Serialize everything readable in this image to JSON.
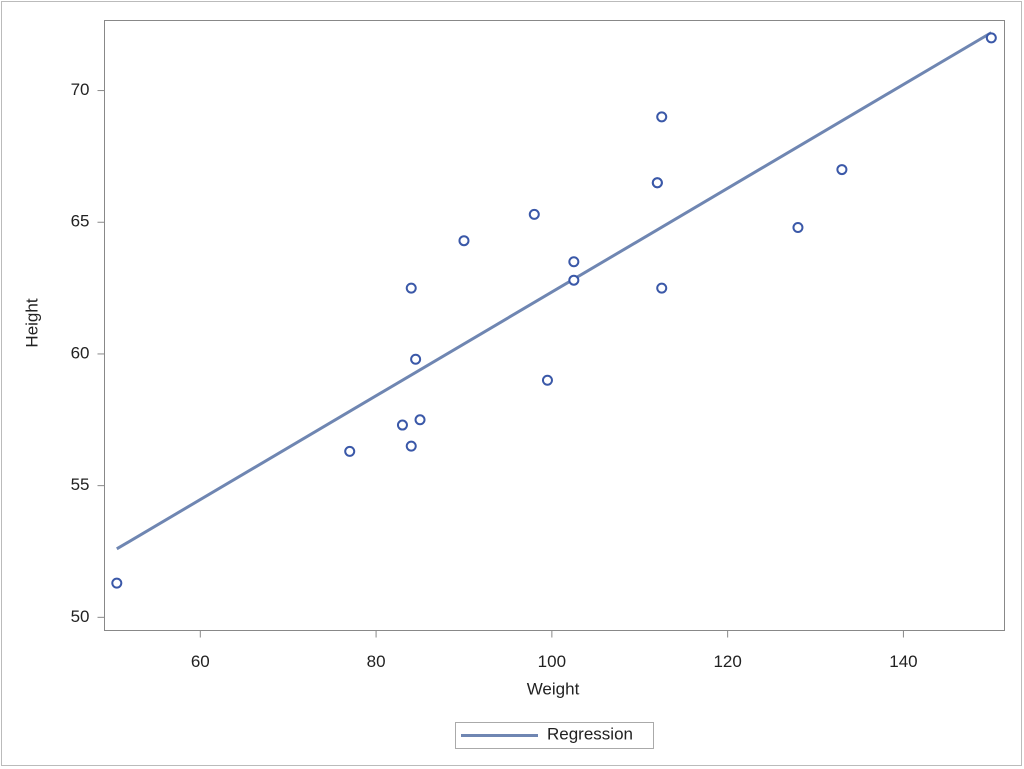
{
  "chart_data": {
    "type": "scatter",
    "x_label": "Weight",
    "y_label": "Height",
    "points": {
      "color": "#3a58a8",
      "x": [
        112.5,
        84,
        98,
        102.5,
        102.5,
        83,
        84.5,
        112.5,
        84,
        99.5,
        50.5,
        90,
        77,
        112,
        150,
        128,
        133,
        85,
        112
      ],
      "values": [
        69,
        56.5,
        65.3,
        62.8,
        63.5,
        57.3,
        59.8,
        62.5,
        62.5,
        59,
        51.3,
        64.3,
        56.3,
        66.5,
        72,
        64.8,
        67,
        57.5,
        66.5
      ]
    },
    "regression": {
      "name": "Regression",
      "color": "#6f86b2",
      "x": [
        50.5,
        150
      ],
      "values": [
        52.6,
        72.2
      ]
    },
    "xlim": [
      49.1,
      151.5
    ],
    "xticks": [
      60,
      80,
      100,
      120,
      140
    ],
    "ylim": [
      49.5,
      72.66
    ],
    "yticks": [
      50,
      55,
      60,
      65,
      70
    ],
    "legend": "bottom"
  }
}
